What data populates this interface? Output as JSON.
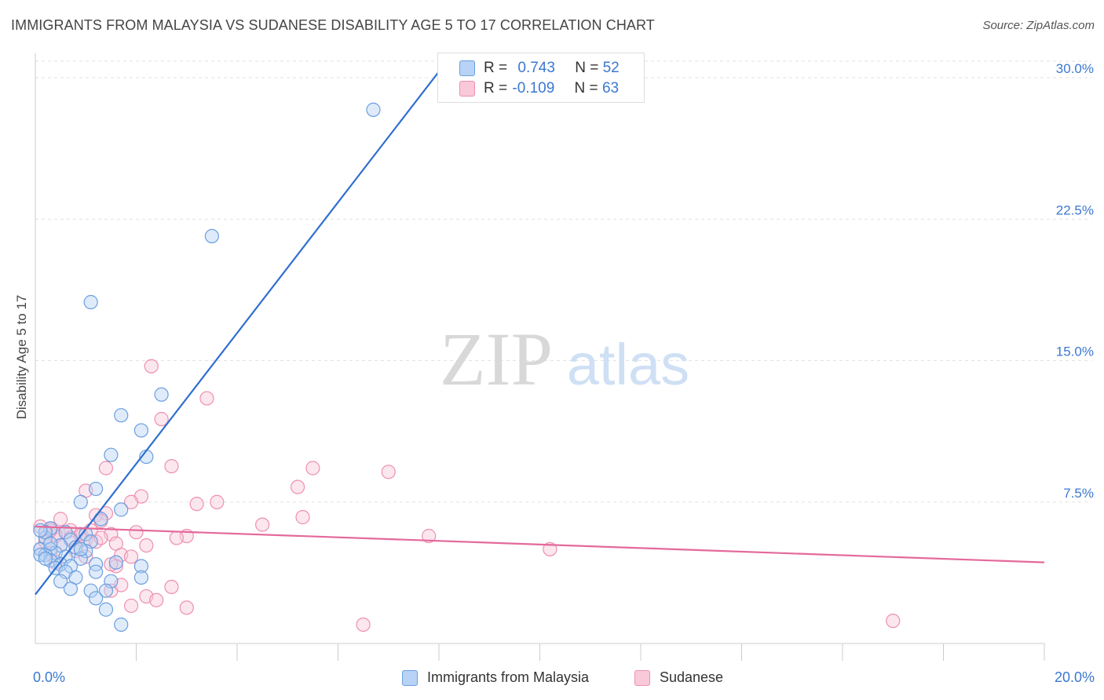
{
  "header": {
    "title": "IMMIGRANTS FROM MALAYSIA VS SUDANESE DISABILITY AGE 5 TO 17 CORRELATION CHART",
    "source": "Source: ZipAtlas.com"
  },
  "watermark": {
    "zip": "ZIP",
    "atlas": "atlas"
  },
  "legend": {
    "r_label": "R =",
    "n_label": "N =",
    "rows": [
      {
        "r": "0.743",
        "n": "52"
      },
      {
        "r": "-0.109",
        "n": "63"
      }
    ]
  },
  "colors": {
    "blue_stroke": "#6a9fe0",
    "blue_fill": "#b8d3f5",
    "blue_line": "#2f6fd0",
    "pink_stroke": "#ee8fb0",
    "pink_fill": "#f9c9d9",
    "pink_line": "#e4699a",
    "axis_text": "#3b78d0",
    "grid": "#e2e2e2"
  },
  "chart_data": {
    "type": "scatter",
    "title": "IMMIGRANTS FROM MALAYSIA VS SUDANESE DISABILITY AGE 5 TO 17 CORRELATION CHART",
    "xlabel": "",
    "ylabel": "Disability Age 5 to 17",
    "xlim": [
      0,
      20
    ],
    "ylim": [
      0,
      31
    ],
    "x_tick_labels": [
      {
        "value": 0,
        "label": "0.0%"
      },
      {
        "value": 20,
        "label": "20.0%"
      }
    ],
    "y_tick_labels": [
      {
        "value": 7.5,
        "label": "7.5%"
      },
      {
        "value": 15.0,
        "label": "15.0%"
      },
      {
        "value": 22.5,
        "label": "22.5%"
      },
      {
        "value": 30.0,
        "label": "30.0%"
      }
    ],
    "x_minor_ticks": [
      2,
      4,
      6,
      8,
      10,
      12,
      14,
      16,
      18,
      20
    ],
    "grid": true,
    "legend_position": "bottom-center",
    "series": [
      {
        "name": "Immigrants from Malaysia",
        "color": "blue",
        "r": 0.743,
        "n": 52,
        "trend": {
          "x": [
            0.0,
            8.05
          ],
          "y": [
            2.6,
            30.5
          ]
        },
        "points": [
          [
            6.7,
            28.3
          ],
          [
            3.5,
            21.6
          ],
          [
            1.1,
            18.1
          ],
          [
            2.5,
            13.2
          ],
          [
            1.7,
            12.1
          ],
          [
            2.1,
            11.3
          ],
          [
            2.2,
            9.9
          ],
          [
            1.5,
            10.0
          ],
          [
            1.2,
            8.2
          ],
          [
            0.9,
            7.5
          ],
          [
            1.7,
            7.1
          ],
          [
            1.3,
            6.6
          ],
          [
            0.3,
            6.1
          ],
          [
            0.6,
            5.9
          ],
          [
            1.0,
            5.8
          ],
          [
            0.2,
            5.6
          ],
          [
            0.7,
            5.5
          ],
          [
            1.1,
            5.4
          ],
          [
            0.5,
            5.2
          ],
          [
            0.8,
            5.1
          ],
          [
            0.3,
            5.0
          ],
          [
            0.1,
            5.0
          ],
          [
            1.0,
            4.9
          ],
          [
            0.4,
            4.8
          ],
          [
            0.2,
            4.7
          ],
          [
            0.6,
            4.6
          ],
          [
            0.9,
            4.5
          ],
          [
            0.1,
            4.7
          ],
          [
            0.3,
            4.4
          ],
          [
            0.5,
            4.2
          ],
          [
            0.7,
            4.1
          ],
          [
            0.4,
            4.0
          ],
          [
            1.2,
            4.2
          ],
          [
            1.6,
            4.3
          ],
          [
            2.1,
            4.1
          ],
          [
            0.6,
            3.8
          ],
          [
            1.2,
            3.8
          ],
          [
            0.8,
            3.5
          ],
          [
            1.5,
            3.3
          ],
          [
            2.1,
            3.5
          ],
          [
            0.5,
            3.3
          ],
          [
            0.7,
            2.9
          ],
          [
            1.1,
            2.8
          ],
          [
            1.4,
            2.8
          ],
          [
            1.2,
            2.4
          ],
          [
            1.4,
            1.8
          ],
          [
            1.7,
            1.0
          ],
          [
            0.2,
            5.9
          ],
          [
            0.1,
            6.0
          ],
          [
            0.9,
            5.0
          ],
          [
            0.3,
            5.3
          ],
          [
            0.2,
            4.5
          ]
        ]
      },
      {
        "name": "Sudanese",
        "color": "pink",
        "r": -0.109,
        "n": 63,
        "trend": {
          "x": [
            0.0,
            20.0
          ],
          "y": [
            6.2,
            4.3
          ]
        },
        "points": [
          [
            2.3,
            14.7
          ],
          [
            3.4,
            13.0
          ],
          [
            2.5,
            11.9
          ],
          [
            1.4,
            9.3
          ],
          [
            2.7,
            9.4
          ],
          [
            5.5,
            9.3
          ],
          [
            7.0,
            9.1
          ],
          [
            5.2,
            8.3
          ],
          [
            1.0,
            8.1
          ],
          [
            2.1,
            7.8
          ],
          [
            1.9,
            7.5
          ],
          [
            3.2,
            7.4
          ],
          [
            3.6,
            7.5
          ],
          [
            1.4,
            6.9
          ],
          [
            1.2,
            6.8
          ],
          [
            5.3,
            6.7
          ],
          [
            1.3,
            6.5
          ],
          [
            0.5,
            6.6
          ],
          [
            4.5,
            6.3
          ],
          [
            0.1,
            6.2
          ],
          [
            0.3,
            6.1
          ],
          [
            0.7,
            6.0
          ],
          [
            2.0,
            5.9
          ],
          [
            0.4,
            5.8
          ],
          [
            0.9,
            5.7
          ],
          [
            1.5,
            5.8
          ],
          [
            3.0,
            5.7
          ],
          [
            7.8,
            5.7
          ],
          [
            2.8,
            5.6
          ],
          [
            0.2,
            5.6
          ],
          [
            1.0,
            5.5
          ],
          [
            1.2,
            5.4
          ],
          [
            1.6,
            5.3
          ],
          [
            0.5,
            5.2
          ],
          [
            2.2,
            5.2
          ],
          [
            10.2,
            5.0
          ],
          [
            0.1,
            5.0
          ],
          [
            0.8,
            4.9
          ],
          [
            1.7,
            4.7
          ],
          [
            1.9,
            4.6
          ],
          [
            0.3,
            4.8
          ],
          [
            1.0,
            4.6
          ],
          [
            1.6,
            4.1
          ],
          [
            0.4,
            4.3
          ],
          [
            2.7,
            3.0
          ],
          [
            1.5,
            2.8
          ],
          [
            2.2,
            2.5
          ],
          [
            2.4,
            2.3
          ],
          [
            1.9,
            2.0
          ],
          [
            3.0,
            1.9
          ],
          [
            6.5,
            1.0
          ],
          [
            17.0,
            1.2
          ],
          [
            0.6,
            5.9
          ],
          [
            0.2,
            5.9
          ],
          [
            1.3,
            5.6
          ],
          [
            0.7,
            5.6
          ],
          [
            0.4,
            5.7
          ],
          [
            0.9,
            5.8
          ],
          [
            1.1,
            6.0
          ],
          [
            0.2,
            5.4
          ],
          [
            1.7,
            3.1
          ],
          [
            1.5,
            4.2
          ],
          [
            0.3,
            6.0
          ]
        ]
      }
    ]
  },
  "bottom_legend": [
    {
      "label": "Immigrants from Malaysia"
    },
    {
      "label": "Sudanese"
    }
  ]
}
